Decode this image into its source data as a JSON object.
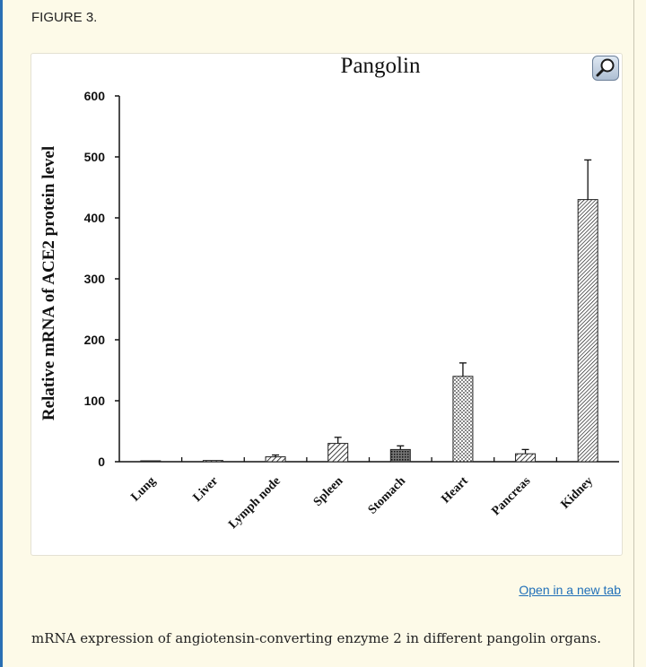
{
  "figure_label": "FIGURE 3.",
  "open_link_label": "Open in a new tab",
  "caption": "mRNA expression of angiotensin-converting enzyme 2 in different pangolin organs.",
  "zoom_icon": "magnifier-icon",
  "chart_data": {
    "type": "bar",
    "title": "Pangolin",
    "ylabel": "Relative mRNA of ACE2 protein level",
    "xlabel": "",
    "ylim": [
      0,
      600
    ],
    "yticks": [
      0,
      100,
      200,
      300,
      400,
      500,
      600
    ],
    "ytick_labels": [
      "0",
      "100",
      "200",
      "300",
      "400",
      "500",
      "600"
    ],
    "categories": [
      "Lung",
      "Liver",
      "Lymph node",
      "Spleen",
      "Stomach",
      "Heart",
      "Pancreas",
      "Kidney"
    ],
    "values": [
      1,
      2,
      8,
      30,
      20,
      140,
      13,
      430
    ],
    "errors": [
      0,
      0,
      3,
      10,
      6,
      22,
      7,
      65
    ],
    "patterns": [
      "diagonal",
      "diagonal",
      "diagonal",
      "diagonal",
      "crosshatch",
      "dots",
      "diagonal",
      "diagonal-dense"
    ],
    "grid": false
  }
}
